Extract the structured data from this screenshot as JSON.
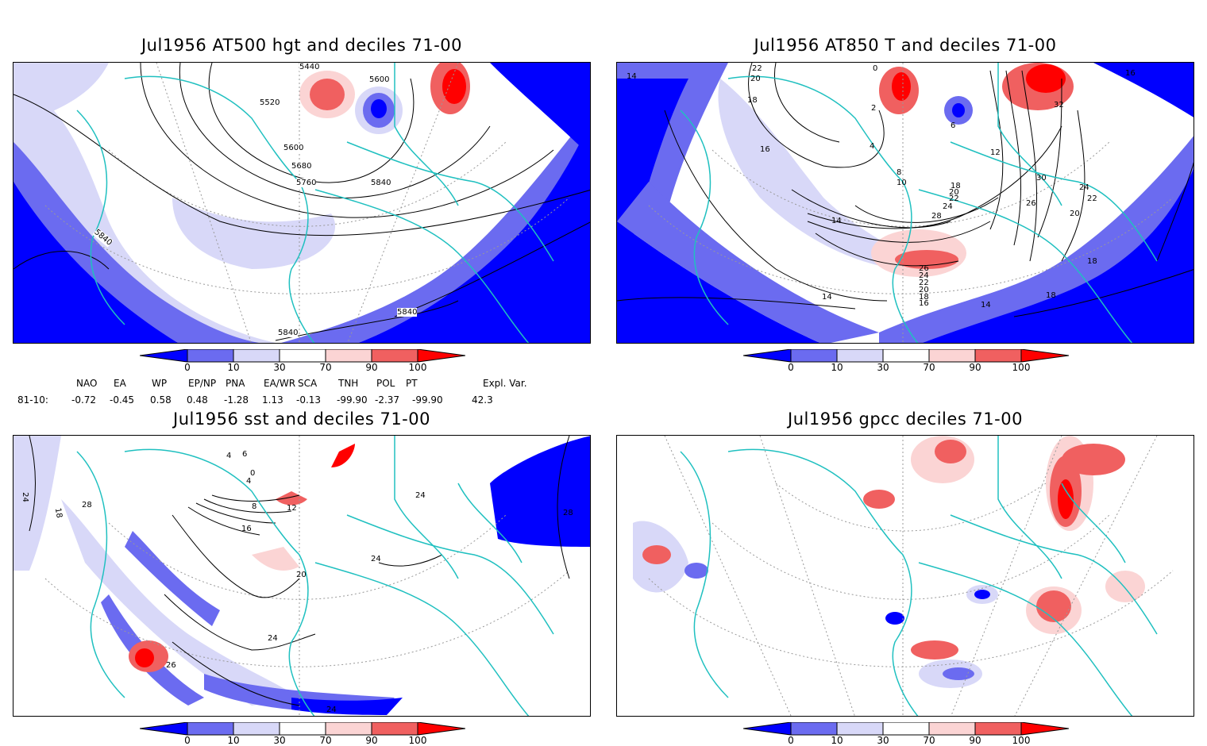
{
  "panels": [
    {
      "title": "Jul1956 AT500 hgt and deciles 71-00",
      "contour_labels": [
        "5440",
        "5520",
        "5600",
        "5600",
        "5680",
        "5760",
        "5840",
        "5840",
        "5840",
        "5840"
      ]
    },
    {
      "title": "Jul1956 AT850 T and deciles 71-00",
      "contour_labels": [
        "22",
        "20",
        "18",
        "16",
        "14",
        "0",
        "2",
        "4",
        "6",
        "8",
        "10",
        "12",
        "18",
        "20",
        "22",
        "24",
        "26",
        "28",
        "30",
        "32",
        "24",
        "22",
        "20",
        "18",
        "16",
        "14",
        "14",
        "18",
        "26",
        "24",
        "22",
        "20",
        "18",
        "16",
        "14"
      ]
    },
    {
      "title": "Jul1956 sst and deciles 71-00",
      "contour_labels": [
        "4",
        "6",
        "0",
        "4",
        "8",
        "12",
        "16",
        "20",
        "24",
        "28",
        "26",
        "24",
        "24",
        "24",
        "28",
        "18",
        "24"
      ]
    },
    {
      "title": "Jul1956 gpcc deciles 71-00",
      "contour_labels": []
    }
  ],
  "colorbar": {
    "ticks": [
      "0",
      "10",
      "30",
      "70",
      "90",
      "100"
    ],
    "colors": {
      "low": "#0000ff",
      "mid_low": "#6b6bf0",
      "light_low": "#d8d8f8",
      "neutral": "#ffffff",
      "light_high": "#fbd4d4",
      "mid_high": "#f06060",
      "high": "#ff0000"
    }
  },
  "indices": {
    "headers": [
      "NAO",
      "EA",
      "WP",
      "EP/NP",
      "PNA",
      "EA/WR",
      "SCA",
      "TNH",
      "POL",
      "PT",
      "Expl. Var."
    ],
    "row_label": "81-10:",
    "values": [
      "-0.72",
      "-0.45",
      "0.58",
      "0.48",
      "-1.28",
      "1.13",
      "-0.13",
      "-99.90",
      "-2.37",
      "-99.90",
      "42.3"
    ]
  },
  "map_colors": {
    "coast": "#20c0c0",
    "contour": "#000000",
    "grid": "#999999"
  }
}
